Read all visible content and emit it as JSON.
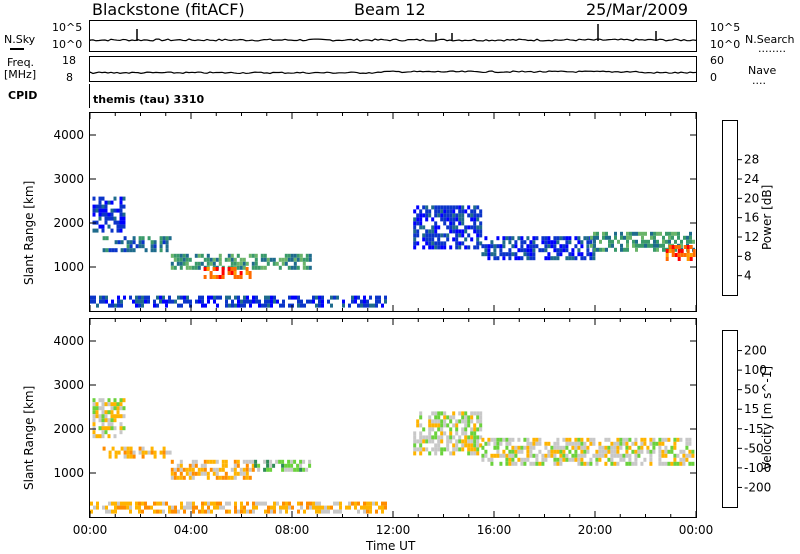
{
  "header": {
    "station": "Blackstone (fitACF)",
    "beam": "Beam 12",
    "date": "25/Mar/2009"
  },
  "side_labels": {
    "nsky": "N.Sky",
    "freq_line1": "Freq.",
    "freq_line2": "[MHz]",
    "cpid": "CPID",
    "nsearch": "N.Search",
    "nave": "Nave",
    "dots1": "........",
    "dots2": "...."
  },
  "top_ticks": {
    "nsky_hi": "10^5",
    "nsky_lo": "10^0",
    "nsearch_hi": "10^5",
    "nsearch_lo": "10^0",
    "freq_hi": "18",
    "freq_lo": "8",
    "nave_hi": "60",
    "nave_lo": "0"
  },
  "cpid_text": "themis (tau) 3310",
  "colors": {
    "power_scale": [
      "#0000ff",
      "#0b35c9",
      "#1e6b8c",
      "#3a9a6a",
      "#6ab46a",
      "#f0c81e",
      "#ff9b00",
      "#ff6a00",
      "#ff0000"
    ],
    "velocity_scale": [
      "#ff0000",
      "#ff4a00",
      "#ff8c00",
      "#ffb400",
      "#c8c8c8",
      "#6ad23c",
      "#2e8b57",
      "#1e3ca0",
      "#0000ff"
    ]
  },
  "chart_data": [
    {
      "type": "heatmap",
      "quantity": "Power",
      "ylabel": "Slant Range [km]",
      "xlabel": "Time UT",
      "x_ticks": [
        "00:00",
        "04:00",
        "08:00",
        "12:00",
        "16:00",
        "20:00",
        "00:00"
      ],
      "y_ticks": [
        "1000",
        "2000",
        "3000",
        "4000"
      ],
      "ylim": [
        0,
        4500
      ],
      "colorbar_label": "Power [dB]",
      "colorbar_ticks": [
        "4",
        "8",
        "12",
        "16",
        "20",
        "24",
        "28"
      ],
      "regions": [
        {
          "t0": 0.1,
          "t1": 1.3,
          "r0": 1800,
          "r1": 2600,
          "level": 1
        },
        {
          "t0": 0.5,
          "t1": 3.2,
          "r0": 1350,
          "r1": 1700,
          "level": 2
        },
        {
          "t0": 3.2,
          "t1": 8.7,
          "r0": 950,
          "r1": 1300,
          "level": 3
        },
        {
          "t0": 4.5,
          "t1": 6.3,
          "r0": 800,
          "r1": 1000,
          "level": 7
        },
        {
          "t0": 12.8,
          "t1": 15.5,
          "r0": 1400,
          "r1": 2400,
          "level": 1
        },
        {
          "t0": 15.5,
          "t1": 20.0,
          "r0": 1200,
          "r1": 1700,
          "level": 1
        },
        {
          "t0": 19.8,
          "t1": 23.9,
          "r0": 1400,
          "r1": 1800,
          "level": 3
        },
        {
          "t0": 22.8,
          "t1": 23.9,
          "r0": 1200,
          "r1": 1500,
          "level": 7
        },
        {
          "t0": 0.0,
          "t1": 11.7,
          "r0": 150,
          "r1": 350,
          "level": 1
        }
      ]
    },
    {
      "type": "heatmap",
      "quantity": "Velocity",
      "ylabel": "Slant Range [km]",
      "xlabel": "Time UT",
      "x_ticks": [
        "00:00",
        "04:00",
        "08:00",
        "12:00",
        "16:00",
        "20:00",
        "00:00"
      ],
      "y_ticks": [
        "1000",
        "2000",
        "3000",
        "4000"
      ],
      "ylim": [
        0,
        4500
      ],
      "colorbar_label": "Velocity [m s^-1]",
      "colorbar_ticks": [
        "200",
        "100",
        "50",
        "15",
        "-15",
        "-50",
        "-100",
        "-200"
      ],
      "regions": [
        {
          "t0": 0.1,
          "t1": 1.3,
          "r0": 1800,
          "r1": 2700,
          "level": 4
        },
        {
          "t0": 0.5,
          "t1": 3.2,
          "r0": 1350,
          "r1": 1600,
          "level": 3
        },
        {
          "t0": 3.2,
          "t1": 6.5,
          "r0": 850,
          "r1": 1300,
          "level": 3
        },
        {
          "t0": 6.5,
          "t1": 8.7,
          "r0": 1050,
          "r1": 1300,
          "level": 5
        },
        {
          "t0": 12.8,
          "t1": 15.5,
          "r0": 1400,
          "r1": 2400,
          "level": 4
        },
        {
          "t0": 15.5,
          "t1": 23.9,
          "r0": 1200,
          "r1": 1800,
          "level": 4
        },
        {
          "t0": 0.0,
          "t1": 11.7,
          "r0": 150,
          "r1": 350,
          "level": 3
        }
      ]
    }
  ]
}
